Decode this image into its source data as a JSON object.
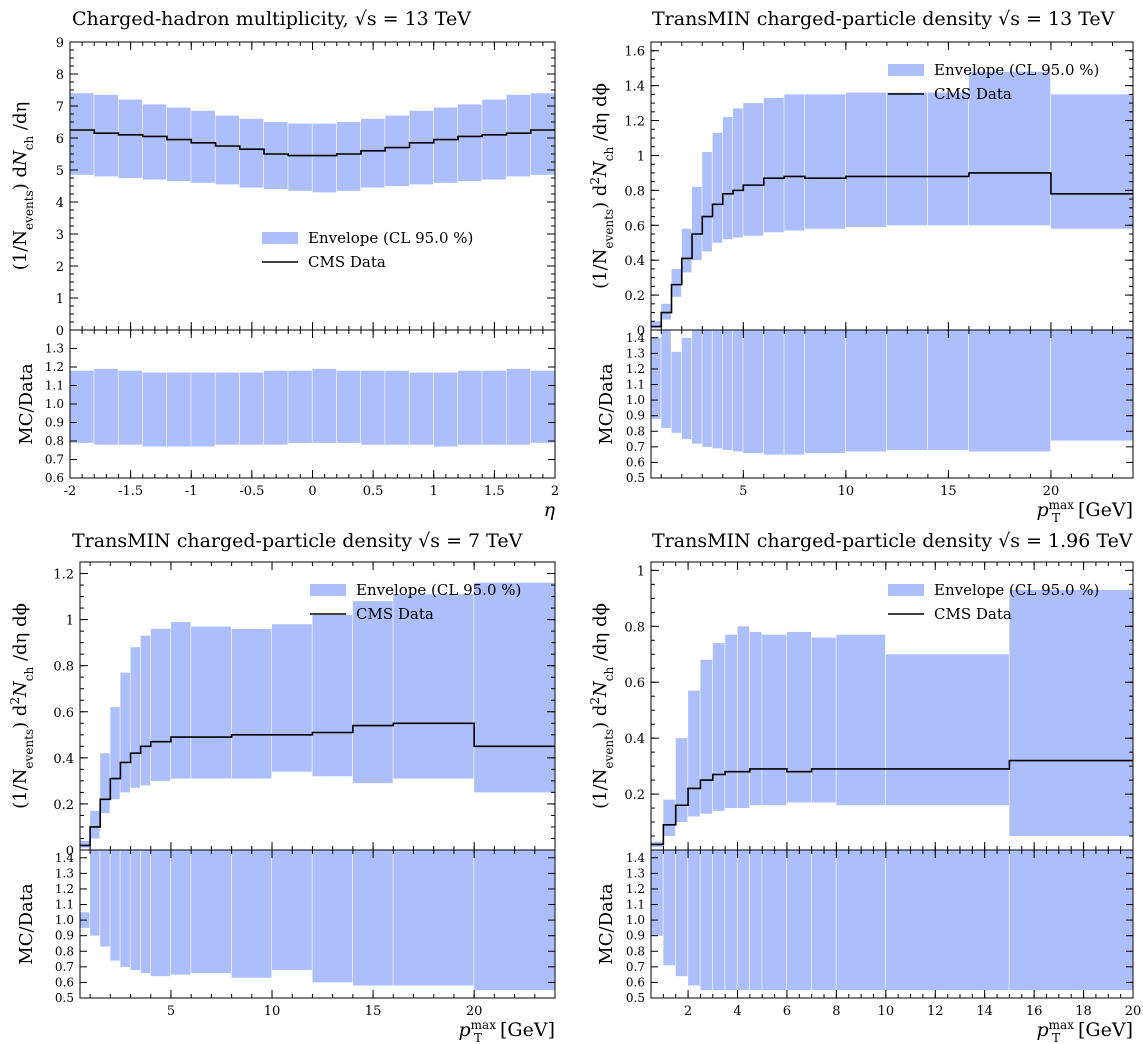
{
  "colors": {
    "envelope": "#adbffa",
    "data_line": "#000000",
    "frame": "#000000"
  },
  "chart_data": [
    {
      "type": "area",
      "title_prefix": "Charged-hadron multiplicity,",
      "title_suffix": "= 13 TeV",
      "title_sqrt": "√s",
      "ylabel": "(1/Nevents) dNch /dη",
      "ratio_ylabel": "MC/Data",
      "xlabel": "η",
      "xlim": [
        -2,
        2
      ],
      "ylim": [
        0,
        9
      ],
      "ratio_ylim": [
        0.6,
        1.4
      ],
      "xticks": [
        -2,
        -1.5,
        -1,
        -0.5,
        0,
        0.5,
        1,
        1.5,
        2
      ],
      "xticklabels": [
        "-2",
        "-1.5",
        "-1",
        "-0.5",
        "0",
        "0.5",
        "1",
        "1.5",
        "2"
      ],
      "yticks": [
        0,
        1,
        2,
        3,
        4,
        5,
        6,
        7,
        8,
        9
      ],
      "yticklabels": [
        "0",
        "1",
        "2",
        "3",
        "4",
        "5",
        "6",
        "7",
        "8",
        "9"
      ],
      "ratio_yticks": [
        0.6,
        0.7,
        0.8,
        0.9,
        1.0,
        1.1,
        1.2,
        1.3
      ],
      "ratio_yticklabels": [
        "0.6",
        "0.7",
        "0.8",
        "0.9",
        "1.0",
        "1.1",
        "1.2",
        "1.3"
      ],
      "legend_position": "center-right",
      "series": [
        {
          "name": "Envelope (CL 95.0 %)"
        },
        {
          "name": "CMS Data"
        }
      ],
      "bins": [
        -2.0,
        -1.8,
        -1.6,
        -1.4,
        -1.2,
        -1.0,
        -0.8,
        -0.6,
        -0.4,
        -0.2,
        0.0,
        0.2,
        0.4,
        0.6,
        0.8,
        1.0,
        1.2,
        1.4,
        1.6,
        1.8,
        2.0
      ],
      "data": [
        6.25,
        6.15,
        6.1,
        6.05,
        5.95,
        5.85,
        5.75,
        5.65,
        5.5,
        5.45,
        5.45,
        5.5,
        5.6,
        5.7,
        5.85,
        5.95,
        6.05,
        6.1,
        6.15,
        6.25
      ],
      "env_low": [
        4.85,
        4.8,
        4.75,
        4.7,
        4.65,
        4.6,
        4.55,
        4.45,
        4.4,
        4.35,
        4.3,
        4.35,
        4.45,
        4.5,
        4.55,
        4.6,
        4.65,
        4.7,
        4.8,
        4.85
      ],
      "env_high": [
        7.4,
        7.35,
        7.2,
        7.05,
        6.95,
        6.85,
        6.7,
        6.6,
        6.5,
        6.45,
        6.45,
        6.5,
        6.6,
        6.7,
        6.85,
        6.95,
        7.05,
        7.2,
        7.35,
        7.4
      ],
      "ratio_low": [
        0.79,
        0.78,
        0.78,
        0.77,
        0.77,
        0.77,
        0.78,
        0.78,
        0.78,
        0.79,
        0.79,
        0.79,
        0.78,
        0.78,
        0.78,
        0.77,
        0.78,
        0.78,
        0.78,
        0.79
      ],
      "ratio_high": [
        1.18,
        1.19,
        1.18,
        1.17,
        1.17,
        1.17,
        1.17,
        1.17,
        1.18,
        1.18,
        1.19,
        1.18,
        1.18,
        1.18,
        1.17,
        1.17,
        1.18,
        1.18,
        1.19,
        1.18
      ]
    },
    {
      "type": "area",
      "title_prefix": "TransMIN charged-particle density",
      "title_suffix": "= 13 TeV",
      "title_sqrt": "√s",
      "ylabel": "(1/Nevents) d2Nch /dη dϕ",
      "ratio_ylabel": "MC/Data",
      "xlabel": "pTmax [GeV]",
      "xlim": [
        0.5,
        24
      ],
      "ylim": [
        0,
        1.65
      ],
      "ratio_ylim": [
        0.5,
        1.45
      ],
      "xticks": [
        5,
        10,
        15,
        20
      ],
      "xticklabels": [
        "5",
        "10",
        "15",
        "20"
      ],
      "yticks": [
        0,
        0.2,
        0.4,
        0.6,
        0.8,
        1,
        1.2,
        1.4,
        1.6
      ],
      "yticklabels": [
        "0",
        "0.2",
        "0.4",
        "0.6",
        "0.8",
        "1",
        "1.2",
        "1.4",
        "1.6"
      ],
      "ratio_yticks": [
        0.5,
        0.6,
        0.7,
        0.8,
        0.9,
        1.0,
        1.1,
        1.2,
        1.3,
        1.4
      ],
      "ratio_yticklabels": [
        "0.5",
        "0.6",
        "0.7",
        "0.8",
        "0.9",
        "1.0",
        "1.1",
        "1.2",
        "1.3",
        "1.4"
      ],
      "legend_position": "top-right",
      "series": [
        {
          "name": "Envelope (CL 95.0 %)"
        },
        {
          "name": "CMS Data"
        }
      ],
      "bins": [
        0.5,
        1.0,
        1.5,
        2.0,
        2.5,
        3.0,
        3.5,
        4.0,
        4.5,
        5.0,
        6.0,
        7.0,
        8.0,
        10.0,
        12.0,
        14.0,
        16.0,
        20.0,
        24.0
      ],
      "data": [
        0.02,
        0.1,
        0.26,
        0.41,
        0.55,
        0.65,
        0.72,
        0.78,
        0.8,
        0.83,
        0.87,
        0.88,
        0.87,
        0.88,
        0.88,
        0.88,
        0.9,
        0.78
      ],
      "env_low": [
        0.01,
        0.06,
        0.19,
        0.33,
        0.4,
        0.45,
        0.5,
        0.52,
        0.53,
        0.54,
        0.56,
        0.57,
        0.58,
        0.59,
        0.6,
        0.6,
        0.6,
        0.58
      ],
      "env_high": [
        0.05,
        0.15,
        0.35,
        0.58,
        0.82,
        1.02,
        1.13,
        1.22,
        1.27,
        1.3,
        1.33,
        1.35,
        1.35,
        1.36,
        1.36,
        1.36,
        1.48,
        1.35
      ],
      "ratio_low": [
        0.88,
        0.82,
        0.79,
        0.75,
        0.72,
        0.7,
        0.69,
        0.68,
        0.67,
        0.66,
        0.65,
        0.65,
        0.66,
        0.67,
        0.68,
        0.68,
        0.67,
        0.74
      ],
      "ratio_high": [
        1.4,
        1.45,
        1.31,
        1.4,
        1.45,
        1.45,
        1.45,
        1.45,
        1.45,
        1.45,
        1.45,
        1.45,
        1.45,
        1.45,
        1.45,
        1.45,
        1.45,
        1.45
      ]
    },
    {
      "type": "area",
      "title_prefix": "TransMIN charged-particle density",
      "title_suffix": "= 7 TeV",
      "title_sqrt": "√s",
      "ylabel": "(1/Nevents) d2Nch /dη dϕ",
      "ratio_ylabel": "MC/Data",
      "xlabel": "pTmax [GeV]",
      "xlim": [
        0.5,
        24
      ],
      "ylim": [
        0,
        1.25
      ],
      "ratio_ylim": [
        0.5,
        1.45
      ],
      "xticks": [
        5,
        10,
        15,
        20
      ],
      "xticklabels": [
        "5",
        "10",
        "15",
        "20"
      ],
      "yticks": [
        0,
        0.2,
        0.4,
        0.6,
        0.8,
        1,
        1.2
      ],
      "yticklabels": [
        "0",
        "0.2",
        "0.4",
        "0.6",
        "0.8",
        "1",
        "1.2"
      ],
      "ratio_yticks": [
        0.5,
        0.6,
        0.7,
        0.8,
        0.9,
        1.0,
        1.1,
        1.2,
        1.3,
        1.4
      ],
      "ratio_yticklabels": [
        "0.5",
        "0.6",
        "0.7",
        "0.8",
        "0.9",
        "1.0",
        "1.1",
        "1.2",
        "1.3",
        "1.4"
      ],
      "legend_position": "top-right",
      "series": [
        {
          "name": "Envelope (CL 95.0 %)"
        },
        {
          "name": "CMS Data"
        }
      ],
      "bins": [
        0.5,
        1.0,
        1.5,
        2.0,
        2.5,
        3.0,
        3.5,
        4.0,
        5.0,
        6.0,
        8.0,
        10.0,
        12.0,
        14.0,
        16.0,
        20.0,
        24.0
      ],
      "data": [
        0.02,
        0.1,
        0.22,
        0.31,
        0.38,
        0.42,
        0.45,
        0.47,
        0.49,
        0.49,
        0.5,
        0.5,
        0.51,
        0.54,
        0.55,
        0.45
      ],
      "env_low": [
        0.01,
        0.05,
        0.16,
        0.22,
        0.25,
        0.27,
        0.28,
        0.3,
        0.31,
        0.31,
        0.31,
        0.34,
        0.32,
        0.29,
        0.31,
        0.25
      ],
      "env_high": [
        0.04,
        0.17,
        0.42,
        0.62,
        0.77,
        0.88,
        0.93,
        0.96,
        0.99,
        0.97,
        0.96,
        0.98,
        1.02,
        1.08,
        1.11,
        1.16
      ],
      "ratio_low": [
        0.95,
        0.9,
        0.83,
        0.74,
        0.7,
        0.68,
        0.66,
        0.64,
        0.65,
        0.66,
        0.63,
        0.68,
        0.6,
        0.58,
        0.58,
        0.55
      ],
      "ratio_high": [
        1.05,
        1.45,
        1.45,
        1.45,
        1.45,
        1.45,
        1.45,
        1.45,
        1.45,
        1.45,
        1.45,
        1.45,
        1.45,
        1.45,
        1.45,
        1.45
      ]
    },
    {
      "type": "area",
      "title_prefix": "TransMIN charged-particle density",
      "title_suffix": "= 1.96 TeV",
      "title_sqrt": "√s",
      "ylabel": "(1/Nevents) d2Nch /dη dϕ",
      "ratio_ylabel": "MC/Data",
      "xlabel": "pTmax [GeV]",
      "xlim": [
        0.5,
        20
      ],
      "ylim": [
        0,
        1.03
      ],
      "ratio_ylim": [
        0.5,
        1.45
      ],
      "xticks": [
        2,
        4,
        6,
        8,
        10,
        12,
        14,
        16,
        18,
        20
      ],
      "xticklabels": [
        "2",
        "4",
        "6",
        "8",
        "10",
        "12",
        "14",
        "16",
        "18",
        "20"
      ],
      "yticks": [
        0.2,
        0.4,
        0.6,
        0.8,
        1
      ],
      "yticklabels": [
        "0.2",
        "0.4",
        "0.6",
        "0.8",
        "1"
      ],
      "ratio_yticks": [
        0.5,
        0.6,
        0.7,
        0.8,
        0.9,
        1.0,
        1.1,
        1.2,
        1.3,
        1.4
      ],
      "ratio_yticklabels": [
        "0.5",
        "0.6",
        "0.7",
        "0.8",
        "0.9",
        "1.0",
        "1.1",
        "1.2",
        "1.3",
        "1.4"
      ],
      "legend_position": "top-right",
      "series": [
        {
          "name": "Envelope (CL 95.0 %)"
        },
        {
          "name": "CMS Data"
        }
      ],
      "bins": [
        0.5,
        1.0,
        1.5,
        2.0,
        2.5,
        3.0,
        3.5,
        4.0,
        4.5,
        5.0,
        6.0,
        7.0,
        8.0,
        10.0,
        15.0,
        20.0
      ],
      "data": [
        0.02,
        0.09,
        0.16,
        0.22,
        0.25,
        0.27,
        0.28,
        0.28,
        0.29,
        0.29,
        0.28,
        0.29,
        0.29,
        0.29,
        0.32
      ],
      "env_low": [
        0.01,
        0.05,
        0.1,
        0.12,
        0.13,
        0.14,
        0.15,
        0.15,
        0.16,
        0.16,
        0.17,
        0.17,
        0.16,
        0.16,
        0.05
      ],
      "env_high": [
        0.03,
        0.18,
        0.4,
        0.57,
        0.68,
        0.74,
        0.77,
        0.8,
        0.78,
        0.77,
        0.78,
        0.76,
        0.77,
        0.7,
        0.93
      ],
      "ratio_low": [
        0.9,
        0.71,
        0.64,
        0.58,
        0.55,
        0.55,
        0.55,
        0.55,
        0.55,
        0.55,
        0.55,
        0.55,
        0.55,
        0.55,
        0.55
      ],
      "ratio_high": [
        1.45,
        1.45,
        1.45,
        1.45,
        1.45,
        1.45,
        1.45,
        1.45,
        1.45,
        1.45,
        1.45,
        1.45,
        1.45,
        1.45,
        1.45
      ]
    }
  ]
}
